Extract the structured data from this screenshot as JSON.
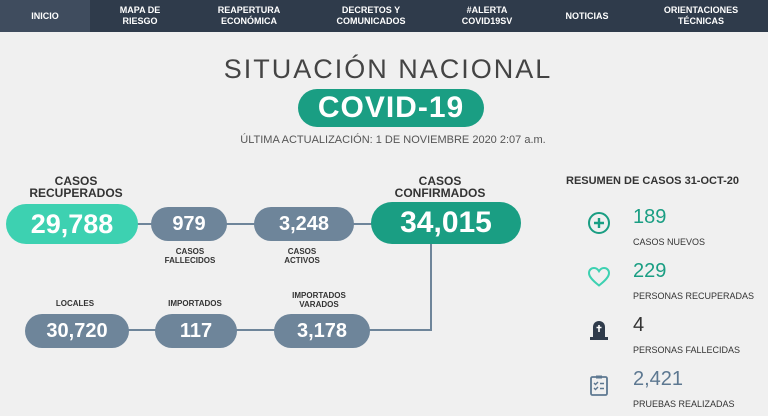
{
  "nav": [
    {
      "label": "INICIO",
      "active": true
    },
    {
      "label": "MAPA DE\nRIESGO"
    },
    {
      "label": "REAPERTURA\nECONÓMICA"
    },
    {
      "label": "DECRETOS Y\nCOMUNICADOS"
    },
    {
      "label": "#ALERTA\nCOVID19SV"
    },
    {
      "label": "NOTICIAS"
    },
    {
      "label": "ORIENTACIONES\nTÉCNICAS"
    }
  ],
  "header": {
    "title": "SITUACIÓN NACIONAL",
    "badge": "COVID-19",
    "updated": "ÚLTIMA ACTUALIZACIÓN: 1 DE NOVIEMBRE 2020 2:07 a.m."
  },
  "stats": {
    "recuperados": {
      "label": "CASOS\nRECUPERADOS",
      "value": "29,788"
    },
    "fallecidos": {
      "label": "CASOS\nFALLECIDOS",
      "value": "979"
    },
    "activos": {
      "label": "CASOS\nACTIVOS",
      "value": "3,248"
    },
    "confirmados": {
      "label": "CASOS\nCONFIRMADOS",
      "value": "34,015"
    },
    "locales": {
      "label": "LOCALES",
      "value": "30,720"
    },
    "importados": {
      "label": "IMPORTADOS",
      "value": "117"
    },
    "varados": {
      "label": "IMPORTADOS\nVARADOS",
      "value": "3,178"
    }
  },
  "summary": {
    "title": "RESUMEN DE CASOS 31-OCT-20",
    "items": [
      {
        "value": "189",
        "label": "CASOS NUEVOS",
        "icon": "plus-circle-icon"
      },
      {
        "value": "229",
        "label": "PERSONAS RECUPERADAS",
        "icon": "heart-icon"
      },
      {
        "value": "4",
        "label": "PERSONAS FALLECIDAS",
        "icon": "tombstone-icon"
      },
      {
        "value": "2,421",
        "label": "PRUEBAS REALIZADAS",
        "icon": "clipboard-icon"
      }
    ]
  },
  "colors": {
    "nav_bg": "#2f3b4b",
    "accent_green": "#1a9e83",
    "teal": "#3dd1b1",
    "slate": "#6e859a"
  }
}
